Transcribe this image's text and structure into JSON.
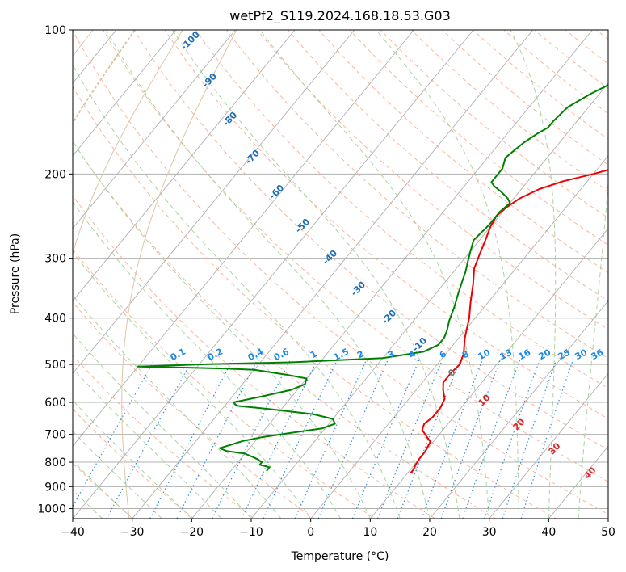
{
  "chart_data": {
    "type": "line",
    "subtype": "skew-T log-P diagram",
    "title": "wetPf2_S119.2024.168.18.53.G03",
    "xlabel": "Temperature (°C)",
    "ylabel": "Pressure (hPa)",
    "xlim": [
      -40,
      50
    ],
    "ylim": [
      1050,
      100
    ],
    "y_scale": "log",
    "grid": true,
    "x_ticks": [
      -40,
      -30,
      -20,
      -10,
      0,
      10,
      20,
      30,
      40,
      50
    ],
    "y_ticks": [
      100,
      200,
      300,
      400,
      500,
      600,
      700,
      800,
      900,
      1000
    ],
    "colors": {
      "temperature": "#ee0000",
      "dewpoint": "#008000",
      "isotherm": "#b0b0b0",
      "dry_adiabat": "#fcb49a",
      "moist_adiabat": "#a8d5a0",
      "mixing_ratio": "#3a8fd8",
      "mixing_label": "#1e88e5",
      "frost_label": "#1f6fb5",
      "isopleth_warm": "#d62728",
      "isopleth_zero": "#777777"
    },
    "series": [
      {
        "name": "",
        "role": "temperature",
        "points": [
          [
            32.5,
            100
          ],
          [
            32,
            102
          ],
          [
            31,
            105
          ],
          [
            30,
            109
          ],
          [
            29,
            112
          ],
          [
            27.5,
            116
          ],
          [
            26,
            121
          ],
          [
            24,
            127
          ],
          [
            22,
            134
          ],
          [
            20,
            140
          ],
          [
            17,
            147
          ],
          [
            14.5,
            154
          ],
          [
            12,
            162
          ],
          [
            10,
            170
          ],
          [
            8,
            179
          ],
          [
            6,
            187
          ],
          [
            3,
            194
          ],
          [
            0,
            200
          ],
          [
            -4,
            207
          ],
          [
            -7,
            215
          ],
          [
            -9,
            225
          ],
          [
            -10,
            235
          ],
          [
            -10.5,
            245
          ],
          [
            -10,
            258
          ],
          [
            -9,
            275
          ],
          [
            -8,
            295
          ],
          [
            -7,
            315
          ],
          [
            -5,
            340
          ],
          [
            -3,
            370
          ],
          [
            -1,
            400
          ],
          [
            1,
            440
          ],
          [
            3,
            475
          ],
          [
            3.8,
            500
          ],
          [
            3.5,
            520
          ],
          [
            3.5,
            545
          ],
          [
            4.5,
            565
          ],
          [
            6,
            590
          ],
          [
            6.5,
            615
          ],
          [
            6.5,
            645
          ],
          [
            6,
            665
          ],
          [
            6.5,
            685
          ],
          [
            8,
            705
          ],
          [
            9.5,
            725
          ],
          [
            10,
            760
          ],
          [
            10,
            790
          ],
          [
            10.2,
            810
          ],
          [
            10.5,
            830
          ],
          [
            10.5,
            840
          ],
          [
            10.8,
            842
          ]
        ]
      },
      {
        "name": "",
        "role": "dewpoint",
        "points": [
          [
            -6,
            100
          ],
          [
            -6.5,
            108
          ],
          [
            -7,
            118
          ],
          [
            -9,
            128
          ],
          [
            -11.5,
            136
          ],
          [
            -13.5,
            145
          ],
          [
            -14,
            155
          ],
          [
            -14,
            160
          ],
          [
            -15,
            165
          ],
          [
            -16,
            172
          ],
          [
            -16.5,
            178
          ],
          [
            -17,
            185
          ],
          [
            -16,
            195
          ],
          [
            -16,
            205
          ],
          [
            -16,
            208
          ],
          [
            -15,
            212
          ],
          [
            -13,
            218
          ],
          [
            -11,
            225
          ],
          [
            -10,
            230
          ],
          [
            -10.5,
            240
          ],
          [
            -10.5,
            255
          ],
          [
            -11,
            275
          ],
          [
            -10,
            290
          ],
          [
            -9,
            305
          ],
          [
            -8,
            320
          ],
          [
            -7,
            340
          ],
          [
            -6,
            360
          ],
          [
            -5,
            380
          ],
          [
            -4,
            405
          ],
          [
            -3,
            425
          ],
          [
            -2.5,
            440
          ],
          [
            -2.5,
            455
          ],
          [
            -4,
            470
          ],
          [
            -10,
            485
          ],
          [
            -25,
            495
          ],
          [
            -40,
            500
          ],
          [
            -50,
            505
          ],
          [
            -35,
            510
          ],
          [
            -30,
            513
          ],
          [
            -24,
            525
          ],
          [
            -20,
            535
          ],
          [
            -19.5,
            550
          ],
          [
            -21,
            565
          ],
          [
            -25,
            583
          ],
          [
            -29,
            600
          ],
          [
            -28,
            610
          ],
          [
            -22,
            620
          ],
          [
            -14,
            635
          ],
          [
            -10,
            650
          ],
          [
            -9,
            665
          ],
          [
            -10.5,
            680
          ],
          [
            -16,
            698
          ],
          [
            -19.5,
            710
          ],
          [
            -22,
            722
          ],
          [
            -23.5,
            735
          ],
          [
            -25,
            748
          ],
          [
            -23.5,
            758
          ],
          [
            -20,
            768
          ],
          [
            -18,
            782
          ],
          [
            -17,
            790
          ],
          [
            -16,
            800
          ],
          [
            -16,
            810
          ],
          [
            -15,
            815
          ],
          [
            -14,
            820
          ],
          [
            -14,
            835
          ]
        ]
      }
    ],
    "dry_adiabats_theta_K": [
      210,
      220,
      230,
      240,
      250,
      260,
      270,
      280,
      290,
      300,
      310,
      320,
      330,
      340,
      350,
      360,
      370,
      380,
      390,
      400,
      410,
      420,
      430,
      440,
      450,
      460,
      470,
      480,
      490,
      500,
      510,
      520,
      530,
      540,
      550,
      560,
      570,
      580
    ],
    "moist_adiabats_base_C": [
      -35,
      -30,
      -25,
      -20,
      -15,
      -10,
      -5,
      0,
      5,
      10,
      15,
      20,
      25,
      30,
      35,
      40,
      45,
      50
    ],
    "mixing_ratio_g_per_kg": [
      0.1,
      0.2,
      0.4,
      0.6,
      1,
      1.5,
      2,
      3,
      4,
      6,
      8,
      10,
      13,
      16,
      20,
      25,
      30,
      36
    ],
    "mixing_labels": [
      "0.1",
      "0.2",
      "0.4",
      "0.6",
      "1",
      "1.5",
      "2",
      "3",
      "4",
      "6",
      "8",
      "10",
      "13",
      "16",
      "20",
      "25",
      "30",
      "36"
    ],
    "frost_point_labels": [
      "-100",
      "-90",
      "-80",
      "-70",
      "-60",
      "-50",
      "-40",
      "-30",
      "-20",
      "-10"
    ],
    "isopleth_labels": [
      "0",
      "10",
      "20",
      "30",
      "40"
    ]
  }
}
